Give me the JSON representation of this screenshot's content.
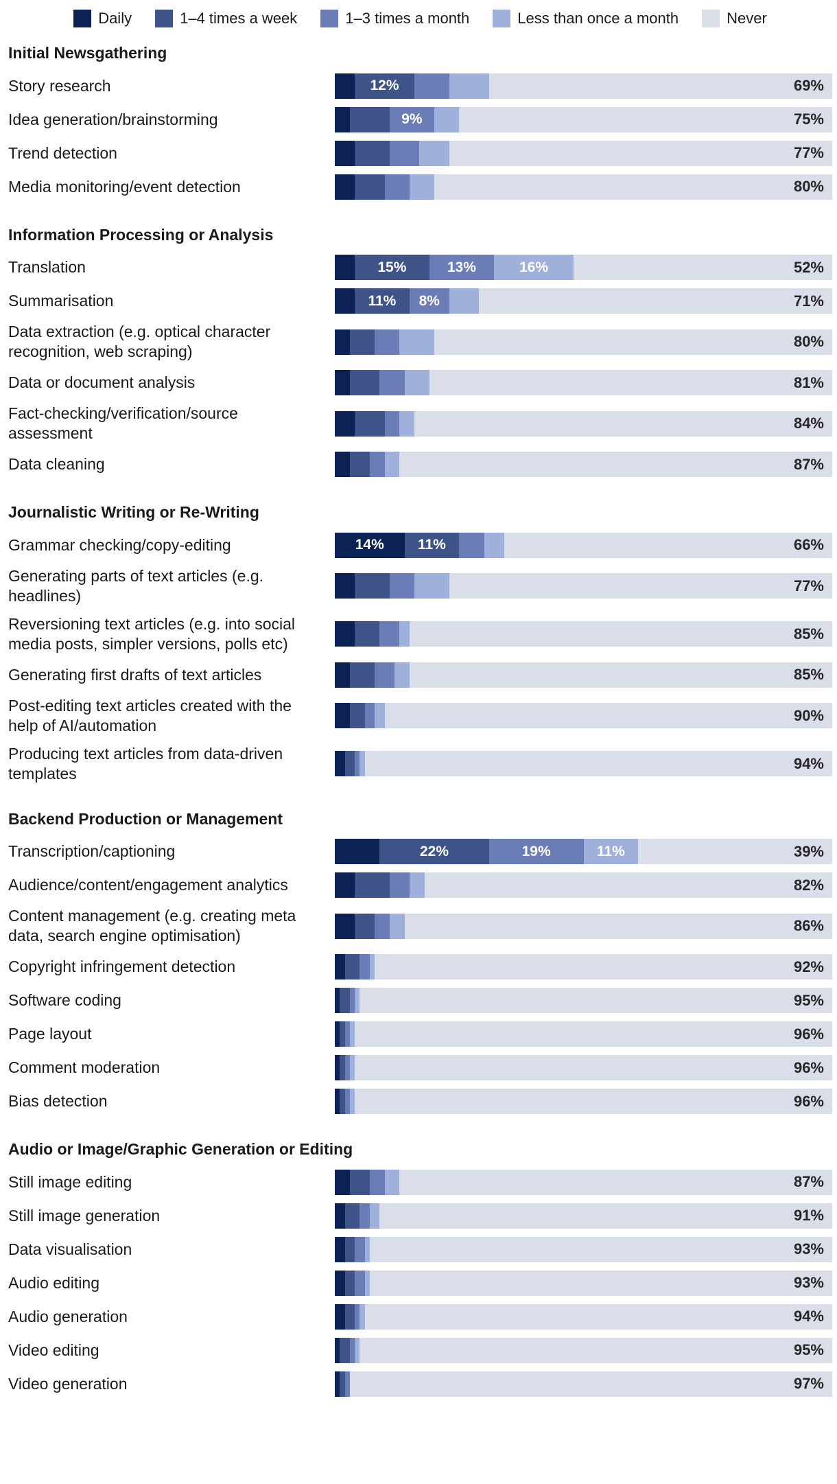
{
  "legend": {
    "items": [
      {
        "label": "Daily",
        "color": "#0c2154"
      },
      {
        "label": "1–4 times a week",
        "color": "#3e5387"
      },
      {
        "label": "1–3 times a month",
        "color": "#6b7db6"
      },
      {
        "label": "Less than once a month",
        "color": "#9fb0db"
      },
      {
        "label": "Never",
        "color": "#d9dee9"
      }
    ]
  },
  "chart_data": {
    "type": "bar",
    "orientation": "horizontal",
    "stacked": true,
    "unit": "%",
    "x_range": [
      0,
      100
    ],
    "legend_position": "top",
    "series_names": [
      "Daily",
      "1–4 times a week",
      "1–3 times a month",
      "Less than once a month",
      "Never"
    ],
    "series_keys": [
      "daily",
      "weekly",
      "monthly",
      "rarely",
      "never"
    ],
    "colors": [
      "#0c2154",
      "#3e5387",
      "#6b7db6",
      "#9fb0db",
      "#d9dee9"
    ],
    "groups": [
      {
        "title": "Initial Newsgathering",
        "rows": [
          {
            "label": "Story research",
            "values": [
              4,
              12,
              7,
              8,
              69
            ],
            "seg_labels": [
              "",
              "12%",
              "",
              ""
            ]
          },
          {
            "label": "Idea generation/brainstorming",
            "values": [
              3,
              8,
              9,
              5,
              75
            ],
            "seg_labels": [
              "",
              "",
              "9%",
              ""
            ]
          },
          {
            "label": "Trend detection",
            "values": [
              4,
              7,
              6,
              6,
              77
            ],
            "seg_labels": [
              "",
              "",
              "",
              ""
            ]
          },
          {
            "label": "Media monitoring/event detection",
            "values": [
              4,
              6,
              5,
              5,
              80
            ],
            "seg_labels": [
              "",
              "",
              "",
              ""
            ]
          }
        ]
      },
      {
        "title": "Information Processing or Analysis",
        "rows": [
          {
            "label": "Translation",
            "values": [
              4,
              15,
              13,
              16,
              52
            ],
            "seg_labels": [
              "",
              "15%",
              "13%",
              "16%"
            ]
          },
          {
            "label": "Summarisation",
            "values": [
              4,
              11,
              8,
              6,
              71
            ],
            "seg_labels": [
              "",
              "11%",
              "8%",
              ""
            ]
          },
          {
            "label": "Data extraction (e.g. optical character recognition, web scraping)",
            "values": [
              3,
              5,
              5,
              7,
              80
            ],
            "seg_labels": [
              "",
              "",
              "",
              ""
            ]
          },
          {
            "label": "Data or document analysis",
            "values": [
              3,
              6,
              5,
              5,
              81
            ],
            "seg_labels": [
              "",
              "",
              "",
              ""
            ]
          },
          {
            "label": "Fact-checking/verification/source assessment",
            "values": [
              4,
              6,
              3,
              3,
              84
            ],
            "seg_labels": [
              "",
              "",
              "",
              ""
            ]
          },
          {
            "label": "Data cleaning",
            "values": [
              3,
              4,
              3,
              3,
              87
            ],
            "seg_labels": [
              "",
              "",
              "",
              ""
            ]
          }
        ]
      },
      {
        "title": "Journalistic Writing or Re-Writing",
        "rows": [
          {
            "label": "Grammar checking/copy-editing",
            "values": [
              14,
              11,
              5,
              4,
              66
            ],
            "seg_labels": [
              "14%",
              "11%",
              "",
              ""
            ]
          },
          {
            "label": "Generating parts of text articles (e.g. headlines)",
            "values": [
              4,
              7,
              5,
              7,
              77
            ],
            "seg_labels": [
              "",
              "",
              "",
              ""
            ]
          },
          {
            "label": "Reversioning text articles (e.g. into social media posts, simpler versions, polls etc)",
            "values": [
              4,
              5,
              4,
              2,
              85
            ],
            "seg_labels": [
              "",
              "",
              "",
              ""
            ]
          },
          {
            "label": "Generating first drafts of text articles",
            "values": [
              3,
              5,
              4,
              3,
              85
            ],
            "seg_labels": [
              "",
              "",
              "",
              ""
            ]
          },
          {
            "label": "Post-editing text articles created with the help of AI/automation",
            "values": [
              3,
              3,
              2,
              2,
              90
            ],
            "seg_labels": [
              "",
              "",
              "",
              ""
            ]
          },
          {
            "label": "Producing text articles from data-driven templates",
            "values": [
              2,
              2,
              1,
              1,
              94
            ],
            "seg_labels": [
              "",
              "",
              "",
              ""
            ]
          }
        ]
      },
      {
        "title": "Backend Production or Management",
        "rows": [
          {
            "label": "Transcription/captioning",
            "values": [
              9,
              22,
              19,
              11,
              39
            ],
            "seg_labels": [
              "",
              "22%",
              "19%",
              "11%"
            ]
          },
          {
            "label": "Audience/content/engagement analytics",
            "values": [
              4,
              7,
              4,
              3,
              82
            ],
            "seg_labels": [
              "",
              "",
              "",
              ""
            ]
          },
          {
            "label": "Content management (e.g. creating meta data, search engine optimisation)",
            "values": [
              4,
              4,
              3,
              3,
              86
            ],
            "seg_labels": [
              "",
              "",
              "",
              ""
            ]
          },
          {
            "label": "Copyright infringement detection",
            "values": [
              2,
              3,
              2,
              1,
              92
            ],
            "seg_labels": [
              "",
              "",
              "",
              ""
            ]
          },
          {
            "label": "Software coding",
            "values": [
              1,
              2,
              1,
              1,
              95
            ],
            "seg_labels": [
              "",
              "",
              "",
              ""
            ]
          },
          {
            "label": "Page layout",
            "values": [
              1,
              1,
              1,
              1,
              96
            ],
            "seg_labels": [
              "",
              "",
              "",
              ""
            ]
          },
          {
            "label": "Comment moderation",
            "values": [
              1,
              1,
              1,
              1,
              96
            ],
            "seg_labels": [
              "",
              "",
              "",
              ""
            ]
          },
          {
            "label": "Bias detection",
            "values": [
              1,
              1,
              1,
              1,
              96
            ],
            "seg_labels": [
              "",
              "",
              "",
              ""
            ]
          }
        ]
      },
      {
        "title": "Audio or Image/Graphic Generation or Editing",
        "rows": [
          {
            "label": "Still image editing",
            "values": [
              3,
              4,
              3,
              3,
              87
            ],
            "seg_labels": [
              "",
              "",
              "",
              ""
            ]
          },
          {
            "label": "Still image generation",
            "values": [
              2,
              3,
              2,
              2,
              91
            ],
            "seg_labels": [
              "",
              "",
              "",
              ""
            ]
          },
          {
            "label": "Data visualisation",
            "values": [
              2,
              2,
              2,
              1,
              93
            ],
            "seg_labels": [
              "",
              "",
              "",
              ""
            ]
          },
          {
            "label": "Audio editing",
            "values": [
              2,
              2,
              2,
              1,
              93
            ],
            "seg_labels": [
              "",
              "",
              "",
              ""
            ]
          },
          {
            "label": "Audio generation",
            "values": [
              2,
              2,
              1,
              1,
              94
            ],
            "seg_labels": [
              "",
              "",
              "",
              ""
            ]
          },
          {
            "label": "Video editing",
            "values": [
              1,
              2,
              1,
              1,
              95
            ],
            "seg_labels": [
              "",
              "",
              "",
              ""
            ]
          },
          {
            "label": "Video generation",
            "values": [
              1,
              1,
              1,
              0,
              97
            ],
            "seg_labels": [
              "",
              "",
              "",
              ""
            ]
          }
        ]
      }
    ]
  }
}
